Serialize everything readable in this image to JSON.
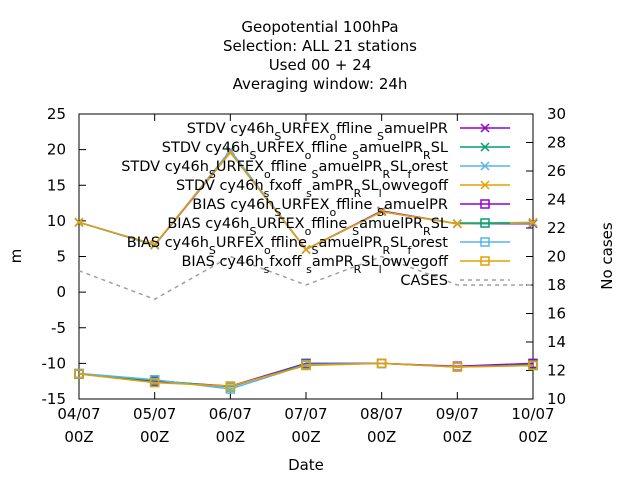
{
  "chart_data": {
    "type": "line",
    "title_lines": [
      "Geopotential 100hPa",
      "Selection: ALL      21 stations",
      "Used  00 + 24",
      "Averaging window: 24h"
    ],
    "xlabel": "Date",
    "ylabel": "m",
    "y2label": "No cases",
    "ylim": [
      -15,
      25
    ],
    "y2lim": [
      10,
      30
    ],
    "yticks": [
      -15,
      -10,
      -5,
      0,
      5,
      10,
      15,
      20,
      25
    ],
    "y2ticks": [
      10,
      12,
      14,
      16,
      18,
      20,
      22,
      24,
      26,
      28,
      30
    ],
    "x_ticks": [
      {
        "top": "04/07",
        "bottom": "00Z"
      },
      {
        "top": "05/07",
        "bottom": "00Z"
      },
      {
        "top": "06/07",
        "bottom": "00Z"
      },
      {
        "top": "07/07",
        "bottom": "00Z"
      },
      {
        "top": "08/07",
        "bottom": "00Z"
      },
      {
        "top": "09/07",
        "bottom": "00Z"
      },
      {
        "top": "10/07",
        "bottom": "00Z"
      }
    ],
    "grid": false,
    "legend_position": "top-right",
    "series": [
      {
        "name": "STDV cy46h_s URFEX_o ffline_s amuelPR",
        "label_parts": [
          [
            "STDV cy46h",
            ""
          ],
          [
            "S",
            "sub"
          ],
          [
            "URFEX",
            ""
          ],
          [
            "o",
            "sub"
          ],
          [
            "ffline ",
            ""
          ],
          [
            "S",
            "sub"
          ],
          [
            "amuelPR",
            ""
          ]
        ],
        "color": "#9400d3",
        "marker": "x",
        "axis": "y1",
        "values": [
          9.8,
          6.6,
          19.6,
          6.0,
          11.4,
          9.6,
          9.6
        ]
      },
      {
        "name": "STDV cy46h_s URFEX_o ffline_s amuelPR_R SL",
        "label_parts": [
          [
            "STDV cy46h",
            ""
          ],
          [
            "S",
            "sub"
          ],
          [
            "URFEX",
            ""
          ],
          [
            "o",
            "sub"
          ],
          [
            "ffline ",
            ""
          ],
          [
            "S",
            "sub"
          ],
          [
            "amuelPR",
            ""
          ],
          [
            "R",
            "sub"
          ],
          [
            "SL",
            ""
          ]
        ],
        "color": "#009e73",
        "marker": "x",
        "axis": "y1",
        "values": [
          9.8,
          6.6,
          19.8,
          6.0,
          11.3,
          9.6,
          9.7
        ]
      },
      {
        "name": "STDV cy46h_s URFEX_o ffline_s amuelPR_R SL_f orest",
        "label_parts": [
          [
            "STDV cy46h",
            ""
          ],
          [
            "S",
            "sub"
          ],
          [
            "URFEX",
            ""
          ],
          [
            "o",
            "sub"
          ],
          [
            "ffline ",
            ""
          ],
          [
            "S",
            "sub"
          ],
          [
            "amuelPR",
            ""
          ],
          [
            "R",
            "sub"
          ],
          [
            "SL",
            ""
          ],
          [
            "f",
            "sub"
          ],
          [
            "orest",
            ""
          ]
        ],
        "color": "#56b4e9",
        "marker": "x",
        "axis": "y1",
        "values": [
          9.8,
          6.6,
          19.9,
          6.0,
          11.3,
          9.6,
          9.7
        ]
      },
      {
        "name": "STDV cy46h_s fxoff_s amPR_R SL_l owvegoff",
        "label_parts": [
          [
            "STDV cy46h",
            ""
          ],
          [
            "s",
            "sub"
          ],
          [
            "fxoff ",
            ""
          ],
          [
            "s",
            "sub"
          ],
          [
            "amPR",
            ""
          ],
          [
            "R",
            "sub"
          ],
          [
            "SL",
            ""
          ],
          [
            "l",
            "sub"
          ],
          [
            "owvegoff",
            ""
          ]
        ],
        "color": "#e69f00",
        "marker": "x",
        "axis": "y1",
        "values": [
          9.8,
          6.7,
          19.6,
          6.0,
          11.3,
          9.6,
          9.8
        ]
      },
      {
        "name": "BIAS cy46h_s URFEX_o ffline_s amuelPR",
        "label_parts": [
          [
            "BIAS cy46h",
            ""
          ],
          [
            "S",
            "sub"
          ],
          [
            "URFEX",
            ""
          ],
          [
            "o",
            "sub"
          ],
          [
            "ffline ",
            ""
          ],
          [
            "S",
            "sub"
          ],
          [
            "amuelPR",
            ""
          ]
        ],
        "color": "#9400d3",
        "marker": "square",
        "axis": "y1",
        "values": [
          -11.5,
          -12.5,
          -13.2,
          -10.0,
          -10.0,
          -10.4,
          -10.0
        ]
      },
      {
        "name": "BIAS cy46h_s URFEX_o ffline_s amuelPR_R SL",
        "label_parts": [
          [
            "BIAS cy46h",
            ""
          ],
          [
            "S",
            "sub"
          ],
          [
            "URFEX",
            ""
          ],
          [
            "o",
            "sub"
          ],
          [
            "ffline ",
            ""
          ],
          [
            "S",
            "sub"
          ],
          [
            "amuelPR",
            ""
          ],
          [
            "R",
            "sub"
          ],
          [
            "SL",
            ""
          ]
        ],
        "color": "#009e73",
        "marker": "square",
        "axis": "y1",
        "values": [
          -11.5,
          -12.4,
          -13.3,
          -10.1,
          -10.0,
          -10.5,
          -10.2
        ]
      },
      {
        "name": "BIAS cy46h_s URFEX_o ffline_s amuelPR_R SL_f orest",
        "label_parts": [
          [
            "BIAS cy46h",
            ""
          ],
          [
            "S",
            "sub"
          ],
          [
            "URFEX",
            ""
          ],
          [
            "o",
            "sub"
          ],
          [
            "ffline ",
            ""
          ],
          [
            "S",
            "sub"
          ],
          [
            "amuelPR",
            ""
          ],
          [
            "R",
            "sub"
          ],
          [
            "SL",
            ""
          ],
          [
            "f",
            "sub"
          ],
          [
            "orest",
            ""
          ]
        ],
        "color": "#56b4e9",
        "marker": "square",
        "axis": "y1",
        "values": [
          -11.4,
          -12.3,
          -13.6,
          -10.2,
          -10.0,
          -10.5,
          -10.3
        ]
      },
      {
        "name": "BIAS cy46h_s fxoff_s amPR_R SL_l owvegoff",
        "label_parts": [
          [
            "BIAS cy46h",
            ""
          ],
          [
            "s",
            "sub"
          ],
          [
            "fxoff ",
            ""
          ],
          [
            "s",
            "sub"
          ],
          [
            "amPR",
            ""
          ],
          [
            "R",
            "sub"
          ],
          [
            "SL",
            ""
          ],
          [
            "l",
            "sub"
          ],
          [
            "owvegoff",
            ""
          ]
        ],
        "color": "#e69f00",
        "marker": "square",
        "axis": "y1",
        "values": [
          -11.5,
          -12.7,
          -13.2,
          -10.3,
          -10.0,
          -10.5,
          -10.3
        ]
      },
      {
        "name": "CASES",
        "label_parts": [
          [
            "CASES",
            ""
          ]
        ],
        "color": "#a0a0a0",
        "marker": "none",
        "dash": true,
        "axis": "y2",
        "values": [
          19,
          17,
          20,
          18,
          20,
          18,
          18
        ]
      }
    ]
  }
}
